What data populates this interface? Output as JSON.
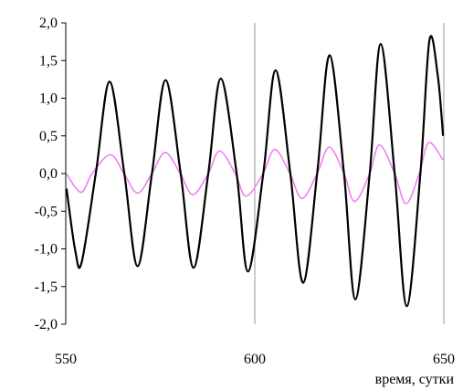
{
  "chart_data": {
    "type": "line",
    "title": "",
    "xlabel": "время, сутки",
    "ylabel": "",
    "xlim": [
      550,
      650
    ],
    "ylim": [
      -2.0,
      2.0
    ],
    "x_ticks": [
      "550",
      "600",
      "650"
    ],
    "x_tick_values": [
      550,
      600,
      650
    ],
    "y_ticks": [
      "2,0",
      "1,5",
      "1,0",
      "0,5",
      "0,0",
      "-0,5",
      "-1,0",
      "-1,5",
      "-2,0"
    ],
    "y_tick_values": [
      2.0,
      1.5,
      1.0,
      0.5,
      0.0,
      -0.5,
      -1.0,
      -1.5,
      -2.0
    ],
    "grid": {
      "vertical": true,
      "horizontal": false
    },
    "legend": "none",
    "series": [
      {
        "color": "#000000",
        "x": [
          550.2,
          552.5,
          554.2,
          558.0,
          561.6,
          565.5,
          569.0,
          572.8,
          576.4,
          580.4,
          583.8,
          587.7,
          591.0,
          595.2,
          598.2,
          602.3,
          605.5,
          609.4,
          612.8,
          616.6,
          619.8,
          623.6,
          626.6,
          630.4,
          633.3,
          637.0,
          640.2,
          643.8,
          646.2,
          648.4,
          649.8
        ],
        "y": [
          -0.2,
          -1.02,
          -1.18,
          0.02,
          1.22,
          0.0,
          -1.23,
          0.0,
          1.24,
          0.0,
          -1.25,
          0.0,
          1.26,
          0.0,
          -1.3,
          0.02,
          1.37,
          0.0,
          -1.45,
          0.05,
          1.57,
          0.0,
          -1.67,
          0.0,
          1.72,
          0.0,
          -1.76,
          0.0,
          1.77,
          1.3,
          0.5
        ]
      },
      {
        "color": "#ee82ee",
        "x": [
          550.2,
          552.5,
          554.5,
          557.0,
          561.8,
          565.4,
          569.0,
          572.8,
          576.3,
          580.3,
          583.6,
          587.7,
          590.7,
          594.8,
          597.7,
          602.2,
          605.3,
          609.3,
          612.5,
          616.5,
          619.7,
          623.6,
          626.4,
          630.4,
          633.0,
          637.0,
          640.0,
          643.5,
          646.0,
          649.8
        ],
        "y": [
          0.0,
          -0.18,
          -0.24,
          0.0,
          0.25,
          0.0,
          -0.26,
          0.0,
          0.28,
          0.0,
          -0.28,
          0.0,
          0.3,
          0.0,
          -0.3,
          0.0,
          0.32,
          0.0,
          -0.33,
          0.0,
          0.35,
          0.0,
          -0.37,
          0.0,
          0.38,
          0.0,
          -0.4,
          0.0,
          0.41,
          0.18
        ]
      }
    ]
  }
}
